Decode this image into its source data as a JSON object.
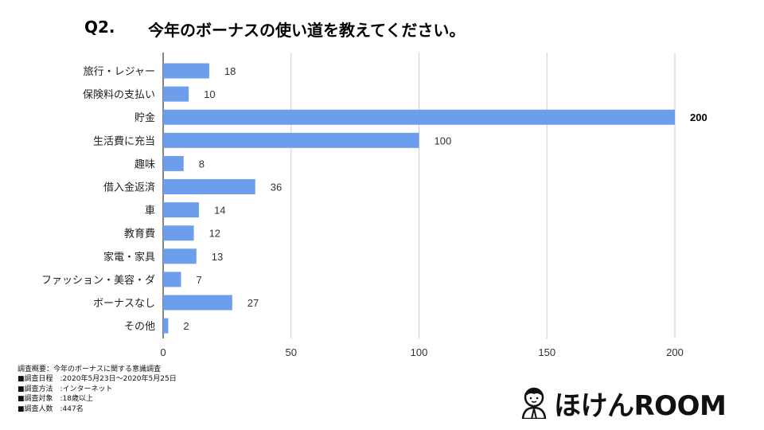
{
  "title": {
    "number": "Q2.",
    "text": "今年のボーナスの使い道を教えてください。"
  },
  "chart_data": {
    "type": "bar",
    "orientation": "horizontal",
    "categories": [
      "旅行・レジャー",
      "保険料の支払い",
      "貯金",
      "生活費に充当",
      "趣味",
      "借入金返済",
      "車",
      "教育費",
      "家電・家具",
      "ファッション・美容・ダ",
      "ボーナスなし",
      "その他"
    ],
    "values": [
      18,
      10,
      200,
      100,
      8,
      36,
      14,
      12,
      13,
      7,
      27,
      2
    ],
    "xlim": [
      0,
      200
    ],
    "xticks": [
      0,
      50,
      100,
      150,
      200
    ],
    "grid": true,
    "bar_color": "#6d9eeb",
    "highlight_label_bold": "200"
  },
  "notes": [
    "調査概要：今年のボーナスに関する意識調査",
    "■調査日程　:2020年5月23日〜2020年5月25日",
    "■調査方法　:インターネット",
    "■調査対象　:18歳以上",
    "■調査人数　:447名"
  ],
  "logo": {
    "text": "ほけんROOM",
    "icon": "person-avatar-icon"
  }
}
